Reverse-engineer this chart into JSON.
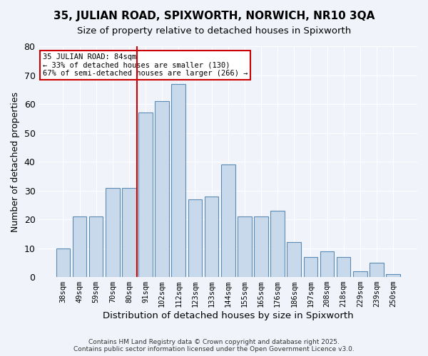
{
  "title1": "35, JULIAN ROAD, SPIXWORTH, NORWICH, NR10 3QA",
  "title2": "Size of property relative to detached houses in Spixworth",
  "xlabel": "Distribution of detached houses by size in Spixworth",
  "ylabel": "Number of detached properties",
  "categories": [
    "38sqm",
    "49sqm",
    "59sqm",
    "70sqm",
    "80sqm",
    "91sqm",
    "102sqm",
    "112sqm",
    "123sqm",
    "133sqm",
    "144sqm",
    "155sqm",
    "165sqm",
    "176sqm",
    "186sqm",
    "197sqm",
    "208sqm",
    "218sqm",
    "229sqm",
    "239sqm",
    "250sqm"
  ],
  "values": [
    10,
    21,
    21,
    31,
    31,
    57,
    61,
    67,
    27,
    28,
    39,
    21,
    21,
    23,
    12,
    7,
    9,
    7,
    2,
    5,
    1
  ],
  "bar_color": "#c9d9ec",
  "bar_edge_color": "#5b8ab5",
  "vline_x_idx": 5,
  "vline_color": "#cc0000",
  "annotation_text": "35 JULIAN ROAD: 84sqm\n← 33% of detached houses are smaller (130)\n67% of semi-detached houses are larger (266) →",
  "annotation_box_color": "#ffffff",
  "annotation_box_edge": "#cc0000",
  "ylim": [
    0,
    80
  ],
  "yticks": [
    0,
    10,
    20,
    30,
    40,
    50,
    60,
    70,
    80
  ],
  "footnote": "Contains HM Land Registry data © Crown copyright and database right 2025.\nContains public sector information licensed under the Open Government Licence v3.0.",
  "bg_color": "#f0f4fa",
  "grid_color": "#ffffff"
}
